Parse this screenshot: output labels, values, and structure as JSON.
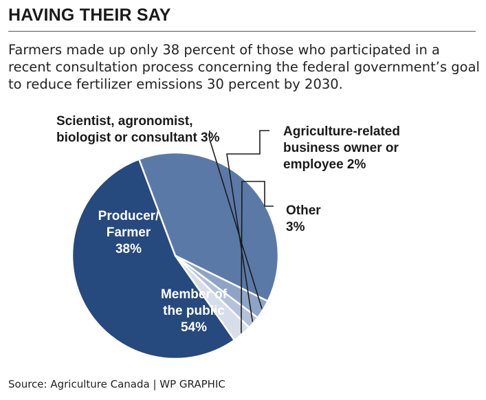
{
  "header": {
    "title": "HAVING THEIR SAY",
    "subtitle": "Farmers made up only 38 percent of those who participated in a recent consultation process concerning the federal government’s goal to reduce fertilizer emissions 30 percent by 2030."
  },
  "footer": {
    "source": "Source: Agriculture Canada  |  WP GRAPHIC"
  },
  "chart_data": {
    "type": "pie",
    "title": "HAVING THEIR SAY",
    "slices": [
      {
        "key": "public",
        "label": "Member of the public",
        "value": 54,
        "color": "#26497e",
        "label_lines": [
          "Member of",
          "the public",
          "54%"
        ]
      },
      {
        "key": "producer",
        "label": "Producer/Farmer",
        "value": 38,
        "color": "#5b79a7",
        "label_lines": [
          "Producer/",
          "Farmer",
          "38%"
        ]
      },
      {
        "key": "scientist",
        "label": "Scientist, agronomist, biologist or consultant",
        "value": 3,
        "color": "#8ea4c6",
        "label_lines": [
          "Scientist, agronomist,",
          "biologist or consultant 3%"
        ]
      },
      {
        "key": "agri",
        "label": "Agriculture-related business owner or employee",
        "value": 2,
        "color": "#b3c2d9",
        "label_lines": [
          "Agriculture-related",
          "business owner or",
          "employee 2%"
        ]
      },
      {
        "key": "other",
        "label": "Other",
        "value": 3,
        "color": "#d6deea",
        "label_lines": [
          "Other",
          "3%"
        ]
      }
    ]
  }
}
